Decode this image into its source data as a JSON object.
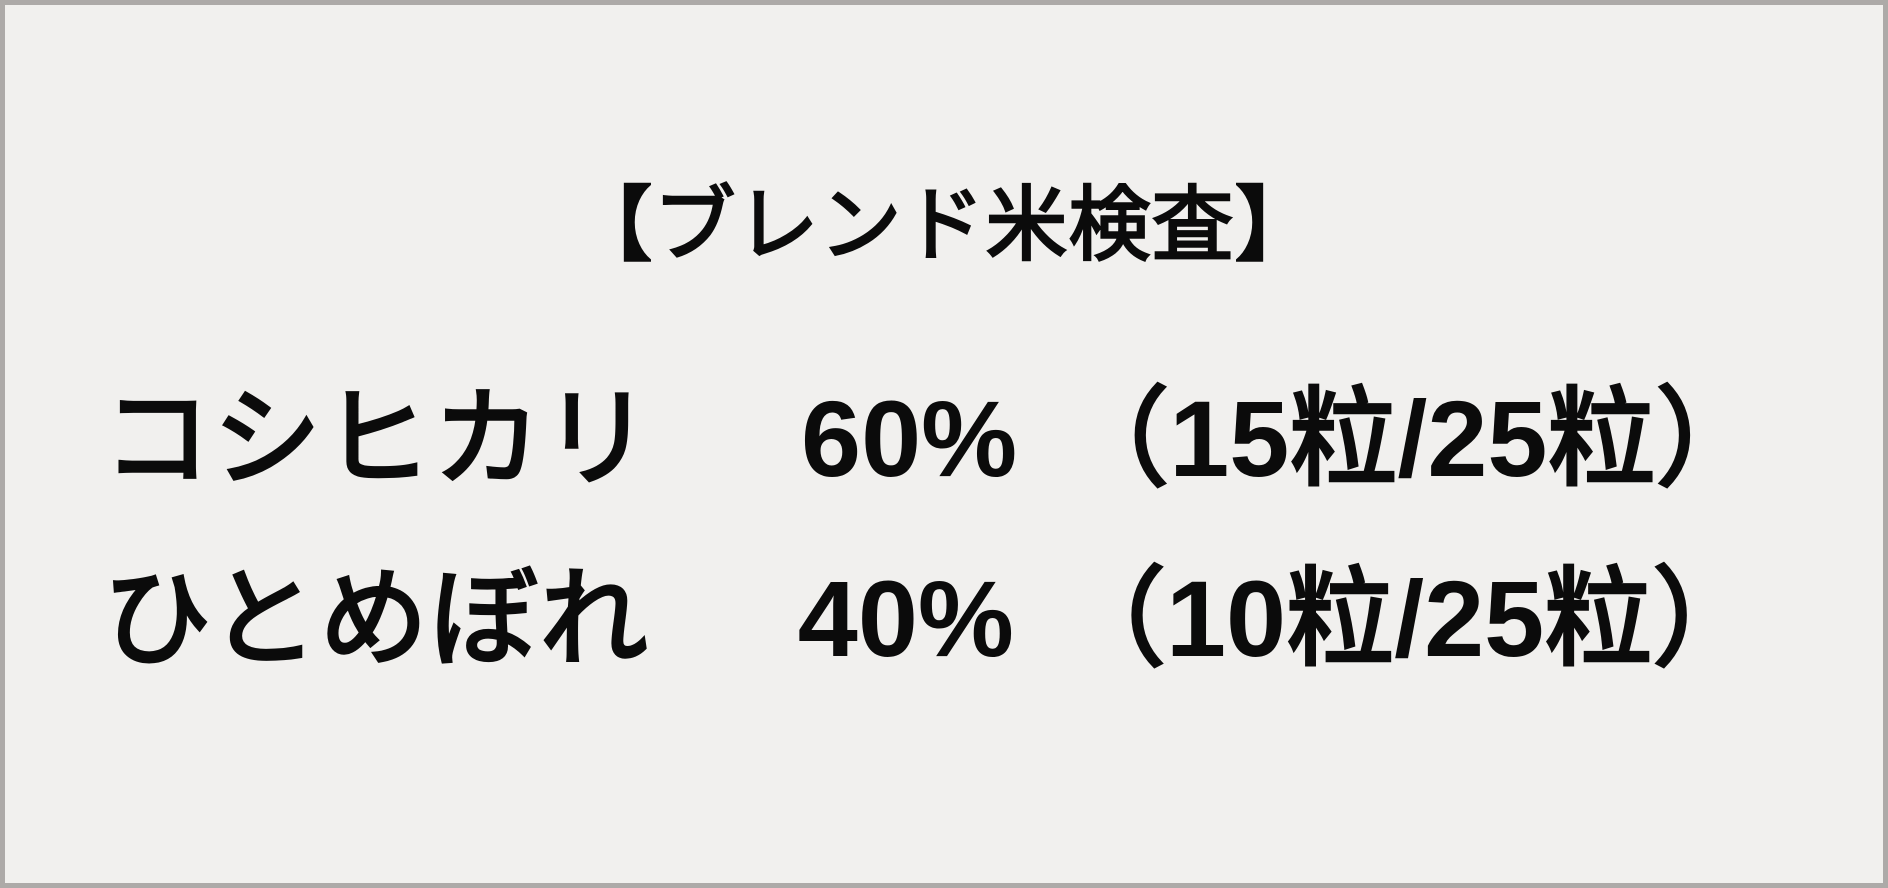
{
  "colors": {
    "background": "#f1f0ee",
    "border": "#adaaa8",
    "text": "#0b0b0b"
  },
  "card": {
    "title": "【ブレンド米検査】"
  },
  "results": [
    {
      "variety": "コシヒカリ",
      "percentage": "60%",
      "fraction": "（15粒/25粒）"
    },
    {
      "variety": "ひとめぼれ",
      "percentage": "40%",
      "fraction": "（10粒/25粒）"
    }
  ]
}
